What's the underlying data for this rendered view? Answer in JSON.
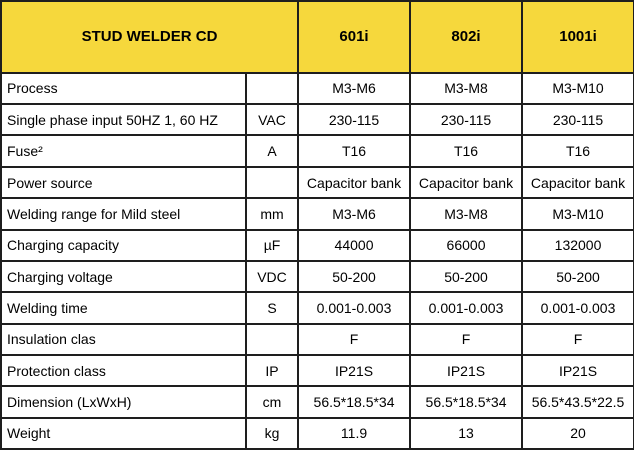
{
  "table": {
    "title": "STUD WELDER CD",
    "models": [
      "601i",
      "802i",
      "1001i"
    ],
    "rows": [
      {
        "label": "Process",
        "unit": "",
        "values": [
          "M3-M6",
          "M3-M8",
          "M3-M10"
        ]
      },
      {
        "label": "Single phase input 50HZ 1, 60 HZ",
        "unit": "VAC",
        "values": [
          "230-115",
          "230-115",
          "230-115"
        ]
      },
      {
        "label": "Fuse²",
        "unit": "A",
        "values": [
          "T16",
          "T16",
          "T16"
        ]
      },
      {
        "label": "Power source",
        "unit": "",
        "values": [
          "Capacitor bank",
          "Capacitor bank",
          "Capacitor bank"
        ]
      },
      {
        "label": "Welding range for Mild steel",
        "unit": "mm",
        "values": [
          "M3-M6",
          "M3-M8",
          "M3-M10"
        ]
      },
      {
        "label": "Charging capacity",
        "unit": "µF",
        "values": [
          "44000",
          "66000",
          "132000"
        ]
      },
      {
        "label": "Charging voltage",
        "unit": "VDC",
        "values": [
          "50-200",
          "50-200",
          "50-200"
        ]
      },
      {
        "label": "Welding time",
        "unit": "S",
        "values": [
          "0.001-0.003",
          "0.001-0.003",
          "0.001-0.003"
        ]
      },
      {
        "label": "Insulation clas",
        "unit": "",
        "values": [
          "F",
          "F",
          "F"
        ]
      },
      {
        "label": "Protection class",
        "unit": "IP",
        "values": [
          "IP21S",
          "IP21S",
          "IP21S"
        ]
      },
      {
        "label": "Dimension (LxWxH)",
        "unit": "cm",
        "values": [
          "56.5*18.5*34",
          "56.5*18.5*34",
          "56.5*43.5*22.5"
        ]
      },
      {
        "label": "Weight",
        "unit": "kg",
        "values": [
          "11.9",
          "13",
          "20"
        ]
      }
    ]
  },
  "colors": {
    "header_bg": "#f6d83c",
    "border": "#1e1e1e",
    "body_bg": "#ffffff",
    "text": "#000000"
  }
}
